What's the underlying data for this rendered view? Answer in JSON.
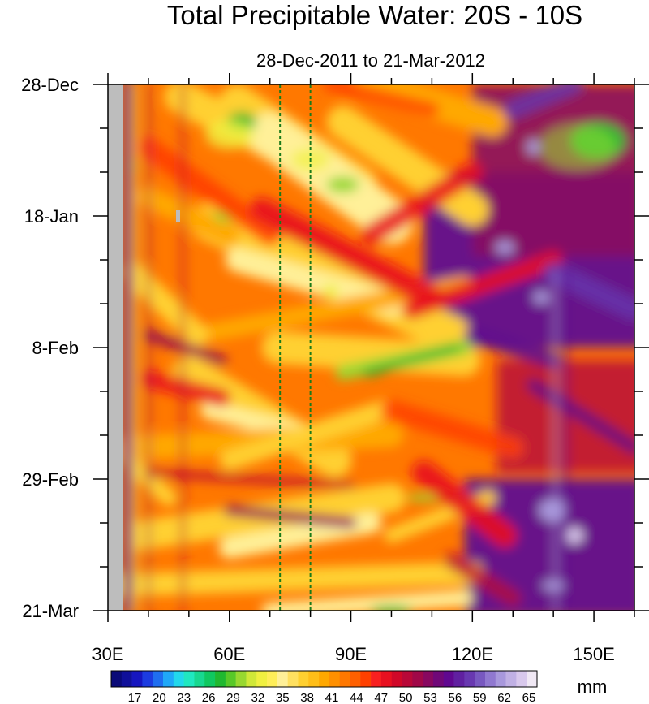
{
  "chart_data": {
    "type": "heatmap",
    "title": "Total Precipitable Water: 20S - 10S",
    "subtitle": "28-Dec-2011 to 21-Mar-2012",
    "x_ticks": [
      {
        "value": 30,
        "label": "30E"
      },
      {
        "value": 60,
        "label": "60E"
      },
      {
        "value": 90,
        "label": "90E"
      },
      {
        "value": 120,
        "label": "120E"
      },
      {
        "value": 150,
        "label": "150E"
      }
    ],
    "xlim": [
      30,
      160
    ],
    "y_ticks": [
      {
        "value": 0,
        "label": "28-Dec"
      },
      {
        "value": 21,
        "label": "18-Jan"
      },
      {
        "value": 42,
        "label": "8-Feb"
      },
      {
        "value": 63,
        "label": "29-Feb"
      },
      {
        "value": 84,
        "label": "21-Mar"
      }
    ],
    "ylim": [
      0,
      84
    ],
    "reference_lines_x": [
      72.5,
      80
    ],
    "colorbar": {
      "unit": "mm",
      "labels": [
        "17",
        "20",
        "23",
        "26",
        "29",
        "32",
        "35",
        "38",
        "41",
        "44",
        "47",
        "50",
        "53",
        "56",
        "59",
        "62",
        "65"
      ],
      "colors": [
        "#0a0a78",
        "#10109a",
        "#1616c0",
        "#1c3ce0",
        "#1f6ef0",
        "#20a8f8",
        "#22d8ec",
        "#20e8c0",
        "#18d890",
        "#10c860",
        "#20b830",
        "#58c828",
        "#98d830",
        "#d0e838",
        "#f0f040",
        "#ffee58",
        "#fff098",
        "#ffe060",
        "#ffd030",
        "#ffbe18",
        "#ffa800",
        "#ff9000",
        "#ff7800",
        "#ff6000",
        "#ff4000",
        "#f82020",
        "#e81020",
        "#d00828",
        "#b80838",
        "#a00848",
        "#880860",
        "#700878",
        "#600890",
        "#6020a0",
        "#6838b0",
        "#7858c0",
        "#9078d0",
        "#a898dc",
        "#c0b0e4",
        "#d8c8ec",
        "#f0e8f4"
      ]
    },
    "fill_colors": [
      "#ffffff",
      "#d8c8ec",
      "#a898dc",
      "#6838b0",
      "#600890",
      "#880860",
      "#b80838",
      "#e81020",
      "#ff4000",
      "#ff7800",
      "#ffa800",
      "#ffd030",
      "#fff098",
      "#f0f040",
      "#98d830",
      "#20b830",
      "#10c860"
    ]
  }
}
